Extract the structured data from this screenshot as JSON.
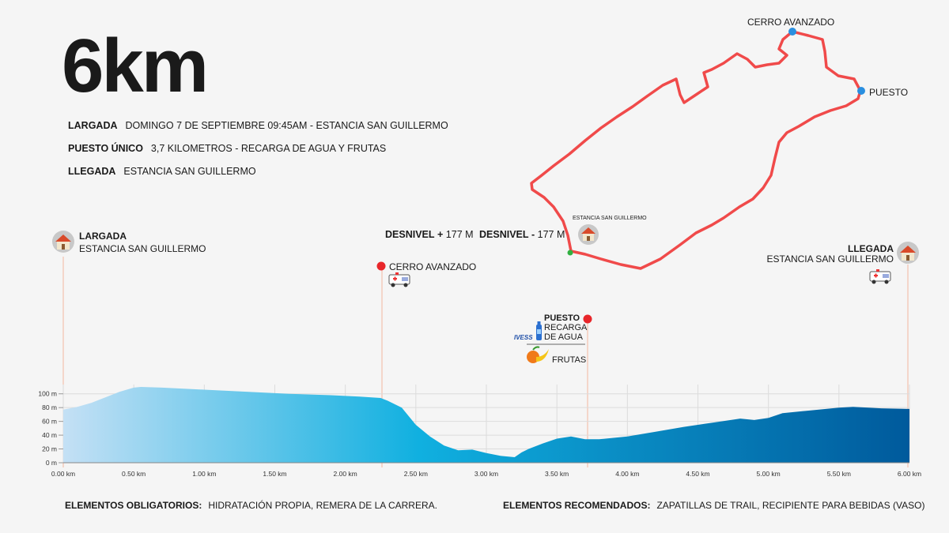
{
  "title": "6km",
  "info": {
    "largada_label": "LARGADA",
    "largada_value": "DOMINGO 7 DE SEPTIEMBRE 09:45AM - ESTANCIA SAN GUILLERMO",
    "puesto_label": "PUESTO ÚNICO",
    "puesto_value": "3,7 KILOMETROS - RECARGA DE AGUA Y FRUTAS",
    "llegada_label": "LLEGADA",
    "llegada_value": "ESTANCIA SAN GUILLERMO"
  },
  "map": {
    "cerro": "CERRO AVANZADO",
    "puesto": "PUESTO",
    "estancia": "ESTANCIA SAN GUILLERMO",
    "route_color": "#f04a4a",
    "point_color": "#2a8fe0"
  },
  "desnivel": {
    "plus_label": "DESNIVEL",
    "plus_sign": "+",
    "plus_value": "177 M",
    "minus_label": "DESNIVEL",
    "minus_sign": "-",
    "minus_value": "177 M"
  },
  "markers": {
    "start_title": "LARGADA",
    "start_sub": "ESTANCIA SAN GUILLERMO",
    "cerro": "CERRO AVANZADO",
    "puesto_title": "PUESTO",
    "puesto_line1": "RECARGA",
    "puesto_line2": "DE AGUA",
    "ivess": "IVESS",
    "frutas": "FRUTAS",
    "end_title": "LLEGADA",
    "end_sub": "ESTANCIA SAN GUILLERMO"
  },
  "chart_data": {
    "type": "area",
    "x": [
      0,
      0.1,
      0.2,
      0.3,
      0.4,
      0.5,
      0.55,
      0.7,
      1.0,
      1.3,
      1.6,
      1.9,
      2.1,
      2.25,
      2.3,
      2.4,
      2.5,
      2.6,
      2.7,
      2.8,
      2.9,
      3.0,
      3.1,
      3.2,
      3.25,
      3.3,
      3.4,
      3.5,
      3.6,
      3.7,
      3.8,
      4.0,
      4.2,
      4.4,
      4.6,
      4.8,
      4.9,
      5.0,
      5.1,
      5.3,
      5.5,
      5.6,
      5.8,
      6.0
    ],
    "y": [
      77,
      81,
      87,
      95,
      103,
      109,
      110,
      109,
      106,
      103,
      100,
      98,
      96,
      94,
      90,
      80,
      55,
      38,
      25,
      18,
      19,
      14,
      10,
      8,
      15,
      20,
      28,
      35,
      38,
      34,
      34,
      38,
      45,
      52,
      58,
      64,
      62,
      65,
      72,
      76,
      80,
      81,
      79,
      78
    ],
    "xticks": [
      "0.00 km",
      "0.50 km",
      "1.00 km",
      "1.50 km",
      "2.00 km",
      "2.50 km",
      "3.00 km",
      "3.50 km",
      "4.00 km",
      "4.50 km",
      "5.00 km",
      "5.50 km",
      "6.00 km"
    ],
    "yticks": [
      "0 m",
      "20 m",
      "40 m",
      "60 m",
      "80 m",
      "100 m"
    ],
    "xlim": [
      0,
      6
    ],
    "ylim": [
      0,
      110
    ],
    "grid": true,
    "fill_gradient": [
      "#c4e0f5",
      "#10b0e0",
      "#005a9c"
    ]
  },
  "bottom": {
    "obligatorios_label": "ELEMENTOS OBLIGATORIOS:",
    "obligatorios_value": "HIDRATACIÓN PROPIA, REMERA DE LA CARRERA.",
    "recomendados_label": "ELEMENTOS RECOMENDADOS:",
    "recomendados_value": "ZAPATILLAS DE TRAIL, RECIPIENTE PARA BEBIDAS (VASO)"
  }
}
